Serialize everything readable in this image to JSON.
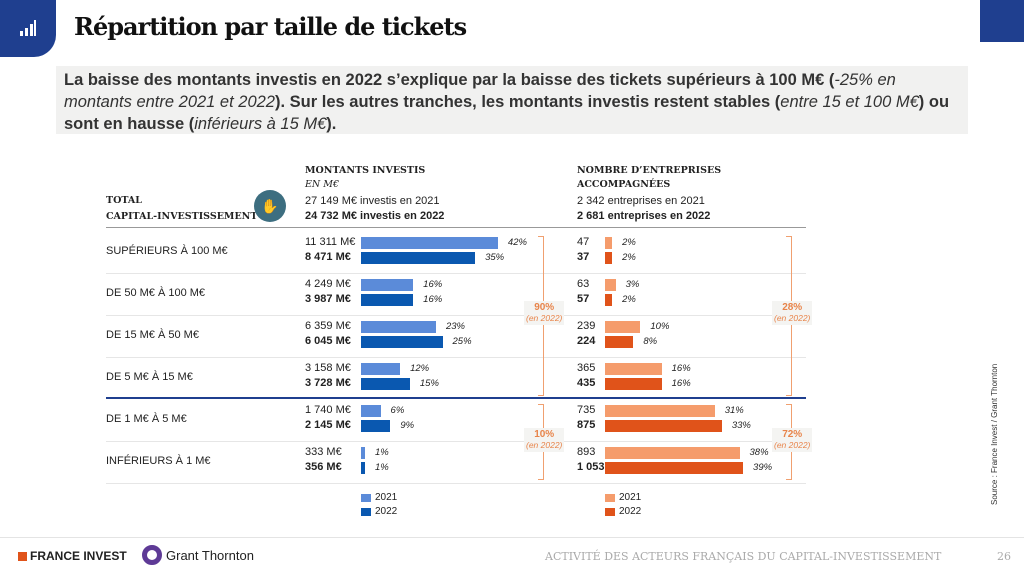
{
  "header": {
    "title": "Répartition par taille de tickets",
    "icon": "bar-chart-icon"
  },
  "intro": {
    "p1": "La baisse des montants investis en 2022 s’explique par la baisse des tickets supérieurs à 100 M€ (",
    "p2": "-25% en montants entre 2021 et 2022",
    "p3": "). Sur les autres tranches, les montants investis restent stables (",
    "p4": "entre 15 et 100 M€",
    "p5": ") ou sont en hausse (",
    "p6": "inférieurs à 15 M€",
    "p7": ")."
  },
  "table": {
    "total_line1": "TOTAL",
    "total_line2": "CAPITAL-INVESTISSEMENT",
    "left_title": "MONTANTS INVESTIS",
    "left_sub": "EN M€",
    "left_2021": "27 149 M€ investis en 2021",
    "left_2022": "24 732 M€ investis en 2022",
    "right_title1": "NOMBRE D’ENTREPRISES",
    "right_title2": "ACCOMPAGNÉES",
    "right_2021": "2 342 entreprises en 2021",
    "right_2022": "2 681 entreprises en 2022",
    "brackets": [
      {
        "left": "90%",
        "right": "28%",
        "note": "(en 2022)"
      },
      {
        "left": "10%",
        "right": "72%",
        "note": "(en 2022)"
      }
    ]
  },
  "chart_data": {
    "type": "bar",
    "categories": [
      "SUPÉRIEURS À 100 M€",
      "DE 50 M€ À 100 M€",
      "DE 15 M€ À 50 M€",
      "DE 5 M€ À 15 M€",
      "DE 1 M€ À 5 M€",
      "INFÉRIEURS À 1 M€"
    ],
    "amounts": {
      "series": [
        {
          "name": "2021",
          "labels": [
            "11 311 M€",
            "4 249 M€",
            "6 359 M€",
            "3 158 M€",
            "1 740 M€",
            "333 M€"
          ],
          "pct": [
            42,
            16,
            23,
            12,
            6,
            1
          ],
          "color": "#5b8bd9"
        },
        {
          "name": "2022",
          "labels": [
            "8 471 M€",
            "3 987 M€",
            "6 045 M€",
            "3 728 M€",
            "2 145 M€",
            "356 M€"
          ],
          "pct": [
            35,
            16,
            25,
            15,
            9,
            1
          ],
          "color": "#0a58b0"
        }
      ]
    },
    "companies": {
      "series": [
        {
          "name": "2021",
          "labels": [
            "47",
            "63",
            "239",
            "365",
            "735",
            "893"
          ],
          "pct": [
            2,
            3,
            10,
            16,
            31,
            38
          ],
          "color": "#f59c6c"
        },
        {
          "name": "2022",
          "labels": [
            "37",
            "57",
            "224",
            "435",
            "875",
            "1 053"
          ],
          "pct": [
            2,
            2,
            8,
            16,
            33,
            39
          ],
          "color": "#e0531a"
        }
      ]
    }
  },
  "footer": {
    "brand1": "FRANCE INVEST",
    "brand2": "Grant Thornton",
    "caption": "ACTIVITÉ DES ACTEURS FRANÇAIS DU CAPITAL-INVESTISSEMENT",
    "page": "26",
    "source": "Source : France Invest / Grant Thornton"
  }
}
